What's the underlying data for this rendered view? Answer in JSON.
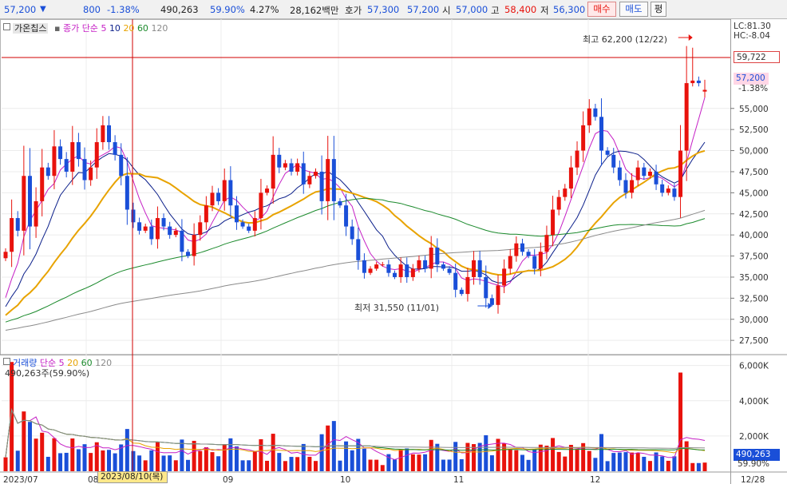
{
  "quote": {
    "price": "57,200",
    "down_arrow": "▼",
    "change": "800",
    "change_rate": "-1.38%",
    "volume": "490,263",
    "volume_ratio": "59.90%",
    "turnover_rate": "4.27%",
    "trade_value": "28,162백만",
    "ask_label": "호가",
    "ask_sell": "57,300",
    "ask_buy": "57,200",
    "open_label": "시",
    "open": "57,000",
    "high_label": "고",
    "high": "58,400",
    "low_label": "저",
    "low": "56,300"
  },
  "buttons": {
    "buy": "매수",
    "sell": "매도",
    "flat": "평"
  },
  "price_panel": {
    "legend_name": "가온칩스",
    "ma_label": "종가 단순",
    "ma_periods": [
      "5",
      "10",
      "20",
      "60",
      "120"
    ],
    "lc": "LC:81.30",
    "hc": "HC:-8.04",
    "max_note": "최고 62,200 (12/22)",
    "min_note": "최저 31,550 (11/01)",
    "cursor_price": "59,722",
    "current_price": "57,200",
    "current_change": "-1.38%"
  },
  "volume_panel": {
    "legend_name": "거래량",
    "ma_label": "단순",
    "ma_periods": [
      "5",
      "20",
      "60",
      "120"
    ],
    "value_label": "490,263주(59.90%)",
    "current": "490,263",
    "current_ratio": "59.90%"
  },
  "x_axis": {
    "cursor_date": "2023/08/10(목)"
  },
  "colors": {
    "up": "#e8120c",
    "down": "#1a4fd8",
    "ma5": "#c51fc5",
    "ma10": "#0b1f8a",
    "ma20": "#e8a300",
    "ma60": "#1b8a2c",
    "ma120": "#8a8a8a",
    "cursor": "#d20000"
  },
  "chart_data": [
    {
      "type": "candlestick",
      "title": "가온칩스",
      "y_ticks": [
        27500,
        30000,
        32500,
        35000,
        37500,
        40000,
        42500,
        45000,
        47500,
        50000,
        52500,
        55000
      ],
      "ylim": [
        26000,
        63500
      ],
      "x_tick_labels": [
        "2023/07",
        "08",
        "09",
        "10",
        "11",
        "12",
        "12/28"
      ],
      "highest": {
        "value": 62200,
        "date": "12/22"
      },
      "lowest": {
        "value": 31550,
        "date": "11/01"
      },
      "close_series": [
        38000,
        42000,
        40500,
        47000,
        41000,
        44000,
        48000,
        47000,
        50500,
        49000,
        47500,
        51000,
        49000,
        46500,
        48000,
        51000,
        53000,
        51000,
        49500,
        47000,
        43000,
        41500,
        40500,
        41000,
        39500,
        42000,
        41000,
        40000,
        40500,
        38000,
        37500,
        40000,
        41500,
        43500,
        45000,
        44000,
        46500,
        43500,
        41500,
        41000,
        40500,
        42000,
        45000,
        45500,
        49500,
        48000,
        48500,
        47500,
        48500,
        46000,
        47000,
        47500,
        44000,
        49000,
        44000,
        43500,
        41000,
        39500,
        37000,
        35500,
        36000,
        36500,
        36500,
        35500,
        35000,
        36500,
        35000,
        36000,
        37000,
        36000,
        38500,
        36500,
        36000,
        35500,
        33500,
        33000,
        35000,
        37000,
        35000,
        32500,
        31700,
        34000,
        36000,
        37500,
        39000,
        38000,
        37500,
        36000,
        38000,
        40000,
        43000,
        44500,
        45500,
        48000,
        50000,
        53000,
        55000,
        54000,
        50000,
        49500,
        48000,
        46500,
        45000,
        46500,
        48000,
        47000,
        47500,
        46000,
        45000,
        45500,
        44500,
        50000,
        58000,
        58300,
        58000,
        57200
      ],
      "ohlc_sample_last": {
        "open": 57000,
        "high": 58400,
        "low": 56300,
        "close": 57200
      }
    },
    {
      "type": "bar",
      "title": "거래량",
      "y_ticks": [
        2000000,
        4000000,
        6000000
      ],
      "y_tick_labels": [
        "2,000K",
        "4,000K",
        "6,000K"
      ],
      "ylim": [
        0,
        6800000
      ],
      "last_value": 490263,
      "last_ratio": "59.90%"
    }
  ]
}
